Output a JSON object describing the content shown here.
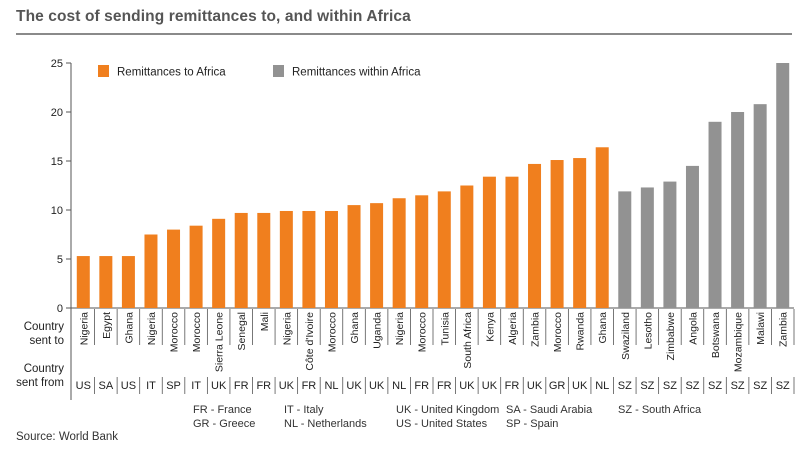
{
  "title": "The cost of sending remittances to, and within Africa",
  "source": "Source: World Bank",
  "row_labels": {
    "sent_to": [
      "Country",
      "sent to"
    ],
    "sent_from": [
      "Country",
      "sent from"
    ]
  },
  "footnotes": [
    [
      "FR - France",
      "GR - Greece"
    ],
    [
      "IT - Italy",
      "NL - Netherlands"
    ],
    [
      "UK - United Kingdom",
      "US - United States"
    ],
    [
      "SA - Saudi Arabia",
      "SP - Spain"
    ],
    [
      "SZ - South Africa"
    ]
  ],
  "colors": {
    "to_africa": "#f07f1e",
    "within_africa": "#929292"
  },
  "chart_data": {
    "type": "bar",
    "title": "The cost of sending remittances to, and within Africa",
    "ylim": [
      0,
      25
    ],
    "yticks": [
      0,
      5,
      10,
      15,
      20,
      25
    ],
    "grid": false,
    "legend": "top-left",
    "series": [
      {
        "name": "Remittances to Africa",
        "color": "#f07f1e"
      },
      {
        "name": "Remittances within Africa",
        "color": "#929292"
      }
    ],
    "bars": [
      {
        "to": "Nigeria",
        "from": "US",
        "value": 5.3,
        "series": 0
      },
      {
        "to": "Egypt",
        "from": "SA",
        "value": 5.3,
        "series": 0
      },
      {
        "to": "Ghana",
        "from": "US",
        "value": 5.3,
        "series": 0
      },
      {
        "to": "Nigeria",
        "from": "IT",
        "value": 7.5,
        "series": 0
      },
      {
        "to": "Morocco",
        "from": "SP",
        "value": 8.0,
        "series": 0
      },
      {
        "to": "Morocco",
        "from": "IT",
        "value": 8.4,
        "series": 0
      },
      {
        "to": "Sierra Leone",
        "from": "UK",
        "value": 9.1,
        "series": 0
      },
      {
        "to": "Senegal",
        "from": "FR",
        "value": 9.7,
        "series": 0
      },
      {
        "to": "Mali",
        "from": "FR",
        "value": 9.7,
        "series": 0
      },
      {
        "to": "Nigeria",
        "from": "UK",
        "value": 9.9,
        "series": 0
      },
      {
        "to": "Côte d'Ivoire",
        "from": "FR",
        "value": 9.9,
        "series": 0
      },
      {
        "to": "Morocco",
        "from": "NL",
        "value": 9.9,
        "series": 0
      },
      {
        "to": "Ghana",
        "from": "UK",
        "value": 10.5,
        "series": 0
      },
      {
        "to": "Uganda",
        "from": "UK",
        "value": 10.7,
        "series": 0
      },
      {
        "to": "Nigeria",
        "from": "NL",
        "value": 11.2,
        "series": 0
      },
      {
        "to": "Morocco",
        "from": "FR",
        "value": 11.5,
        "series": 0
      },
      {
        "to": "Tunisia",
        "from": "FR",
        "value": 11.9,
        "series": 0
      },
      {
        "to": "South Africa",
        "from": "UK",
        "value": 12.5,
        "series": 0
      },
      {
        "to": "Kenya",
        "from": "UK",
        "value": 13.4,
        "series": 0
      },
      {
        "to": "Algeria",
        "from": "FR",
        "value": 13.4,
        "series": 0
      },
      {
        "to": "Zambia",
        "from": "UK",
        "value": 14.7,
        "series": 0
      },
      {
        "to": "Morocco",
        "from": "GR",
        "value": 15.1,
        "series": 0
      },
      {
        "to": "Rwanda",
        "from": "UK",
        "value": 15.3,
        "series": 0
      },
      {
        "to": "Ghana",
        "from": "NL",
        "value": 16.4,
        "series": 0
      },
      {
        "to": "Swaziland",
        "from": "SZ",
        "value": 11.9,
        "series": 1
      },
      {
        "to": "Lesotho",
        "from": "SZ",
        "value": 12.3,
        "series": 1
      },
      {
        "to": "Zimbabwe",
        "from": "SZ",
        "value": 12.9,
        "series": 1
      },
      {
        "to": "Angola",
        "from": "SZ",
        "value": 14.5,
        "series": 1
      },
      {
        "to": "Botswana",
        "from": "SZ",
        "value": 19.0,
        "series": 1
      },
      {
        "to": "Mozambique",
        "from": "SZ",
        "value": 20.0,
        "series": 1
      },
      {
        "to": "Malawi",
        "from": "SZ",
        "value": 20.8,
        "series": 1
      },
      {
        "to": "Zambia",
        "from": "SZ",
        "value": 25.0,
        "series": 1
      }
    ]
  }
}
